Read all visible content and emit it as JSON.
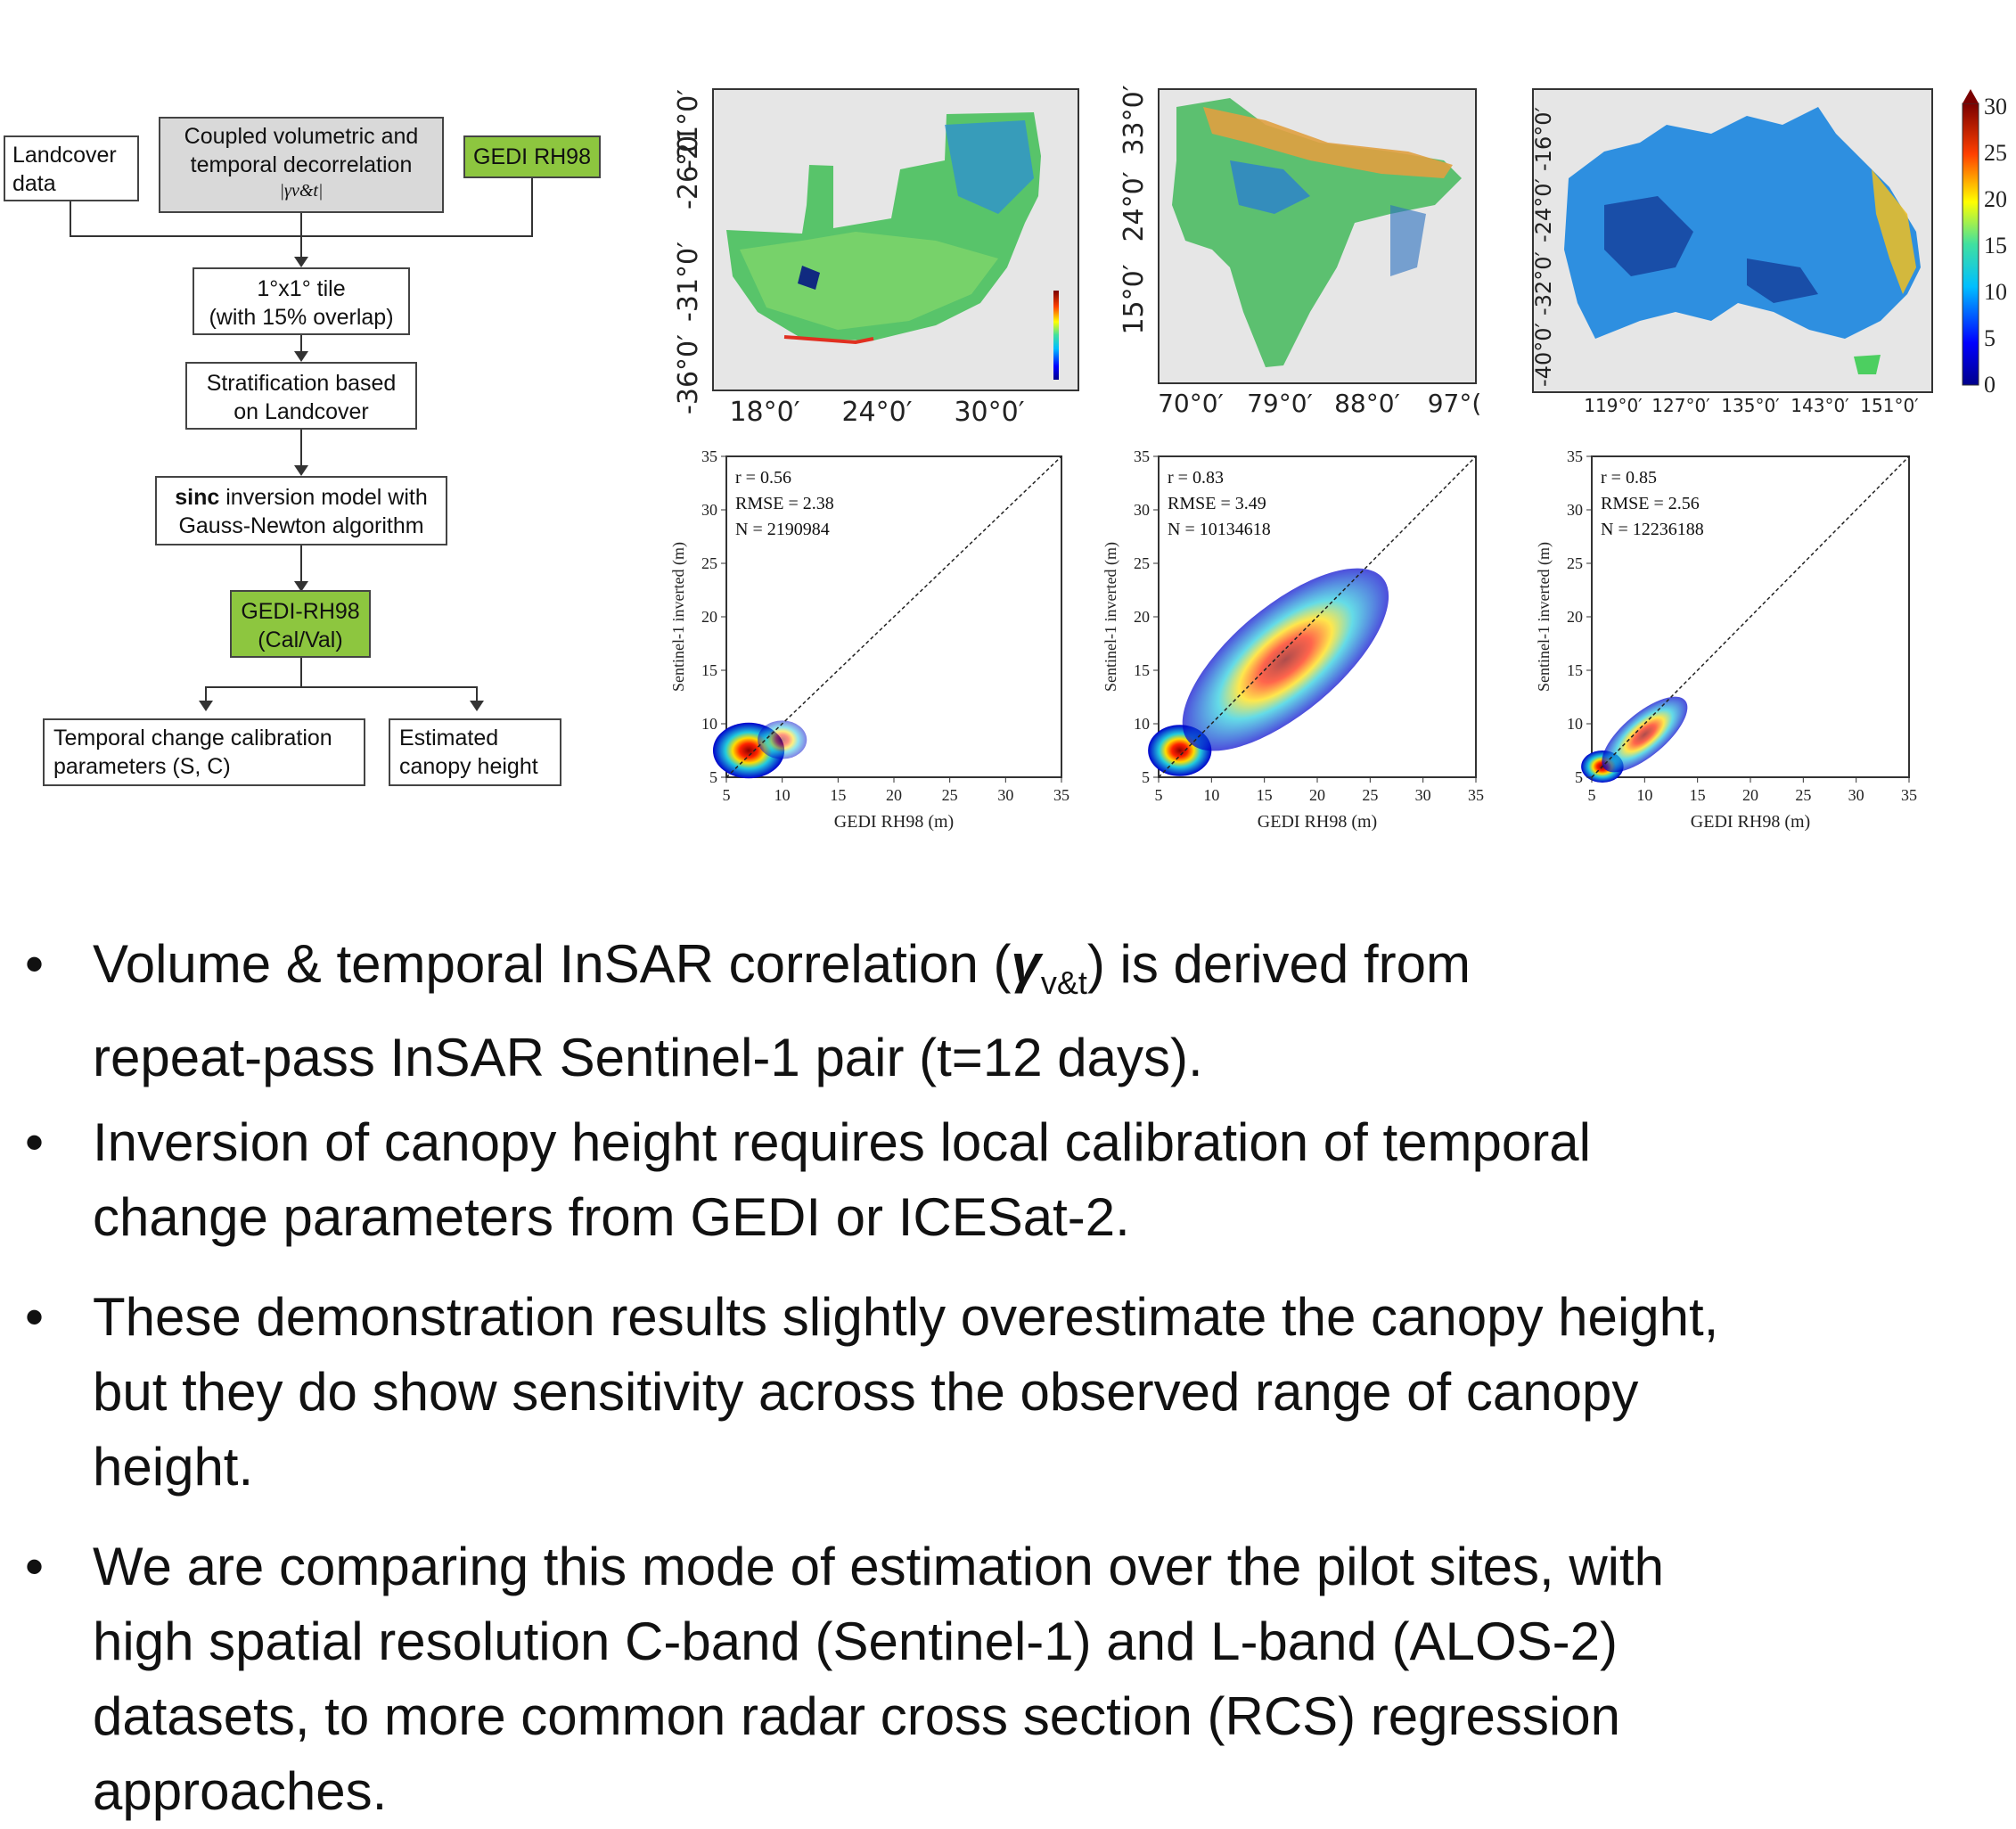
{
  "flowchart": {
    "landcover": "Landcover data",
    "coupled_l1": "Coupled volumetric and",
    "coupled_l2": "temporal decorrelation",
    "coupled_l3": "|γv&t|",
    "gedi_rh98": "GEDI RH98",
    "tile_l1": "1°x1° tile",
    "tile_l2": "(with 15% overlap)",
    "strat_l1": "Stratification based",
    "strat_l2": "on Landcover",
    "sinc_bold": "sinc",
    "sinc_rest": " inversion model with",
    "sinc_l2": "Gauss-Newton algorithm",
    "calval_l1": "GEDI-RH98",
    "calval_l2": "(Cal/Val)",
    "temporal_l1": "Temporal change calibration",
    "temporal_l2": "parameters (S, C)",
    "estimated_l1": "Estimated",
    "estimated_l2": "canopy height"
  },
  "maps": [
    {
      "region": "Southern Africa",
      "ylabels": [
        "-21°0′",
        "-26°0′",
        "-31°0′",
        "-36°0′"
      ],
      "xlabels": [
        "18°0′",
        "24°0′",
        "30°0′"
      ]
    },
    {
      "region": "South Asia",
      "ylabels": [
        "33°0′",
        "24°0′",
        "15°0′"
      ],
      "xlabels": [
        "70°0′",
        "79°0′",
        "88°0′",
        "97°("
      ]
    },
    {
      "region": "Australia",
      "ylabels": [
        "-16°0′",
        "-24°0′",
        "-32°0′",
        "-40°0′"
      ],
      "xlabels": [
        "119°0′",
        "127°0′",
        "135°0′",
        "143°0′",
        "151°0′"
      ]
    }
  ],
  "colorbar": {
    "ticks": [
      "30",
      "25",
      "20",
      "15",
      "10",
      "5",
      "0"
    ]
  },
  "chart_data": [
    {
      "type": "scatter",
      "xlabel": "GEDI RH98 (m)",
      "ylabel": "Sentinel-1 inverted (m)",
      "xlim": [
        5,
        35
      ],
      "ylim": [
        5,
        35
      ],
      "xticks": [
        "5",
        "10",
        "15",
        "20",
        "25",
        "30",
        "35"
      ],
      "yticks": [
        "5",
        "10",
        "15",
        "20",
        "25",
        "30",
        "35"
      ],
      "stats": {
        "r": "r  = 0.56",
        "rmse": "RMSE  = 2.38",
        "n": "N  = 2190984"
      }
    },
    {
      "type": "scatter",
      "xlabel": "GEDI RH98 (m)",
      "ylabel": "Sentinel-1 inverted (m)",
      "xlim": [
        5,
        35
      ],
      "ylim": [
        5,
        35
      ],
      "xticks": [
        "5",
        "10",
        "15",
        "20",
        "25",
        "30",
        "35"
      ],
      "yticks": [
        "5",
        "10",
        "15",
        "20",
        "25",
        "30",
        "35"
      ],
      "stats": {
        "r": "r  = 0.83",
        "rmse": "RMSE  = 3.49",
        "n": "N  = 10134618"
      }
    },
    {
      "type": "scatter",
      "xlabel": "GEDI RH98 (m)",
      "ylabel": "Sentinel-1 inverted (m)",
      "xlim": [
        5,
        35
      ],
      "ylim": [
        5,
        35
      ],
      "xticks": [
        "5",
        "10",
        "15",
        "20",
        "25",
        "30",
        "35"
      ],
      "yticks": [
        "5",
        "10",
        "15",
        "20",
        "25",
        "30",
        "35"
      ],
      "stats": {
        "r": "r  = 0.85",
        "rmse": "RMSE  = 2.56",
        "n": "N  = 12236188"
      }
    }
  ],
  "bullets": {
    "b1_a": "Volume & temporal InSAR correlation (",
    "b1_gamma": "γ",
    "b1_sub": "v&t",
    "b1_b": ") is derived from",
    "b1_l2": "repeat-pass InSAR Sentinel-1 pair (t=12 days).",
    "b2_l1": "Inversion of canopy height requires local calibration of temporal",
    "b2_l2": "change parameters from GEDI or ICESat-2.",
    "b3_l1": "These demonstration results slightly overestimate the canopy height,",
    "b3_l2": "but they do show sensitivity across the observed range of canopy",
    "b3_l3": "height.",
    "b4_l1": "We are comparing this mode of estimation over the pilot sites, with",
    "b4_l2": "high spatial resolution C-band (Sentinel-1) and L-band (ALOS-2)",
    "b4_l3": "datasets, to more common radar cross section (RCS) regression",
    "b4_l4": "approaches.",
    "dot": "•"
  }
}
